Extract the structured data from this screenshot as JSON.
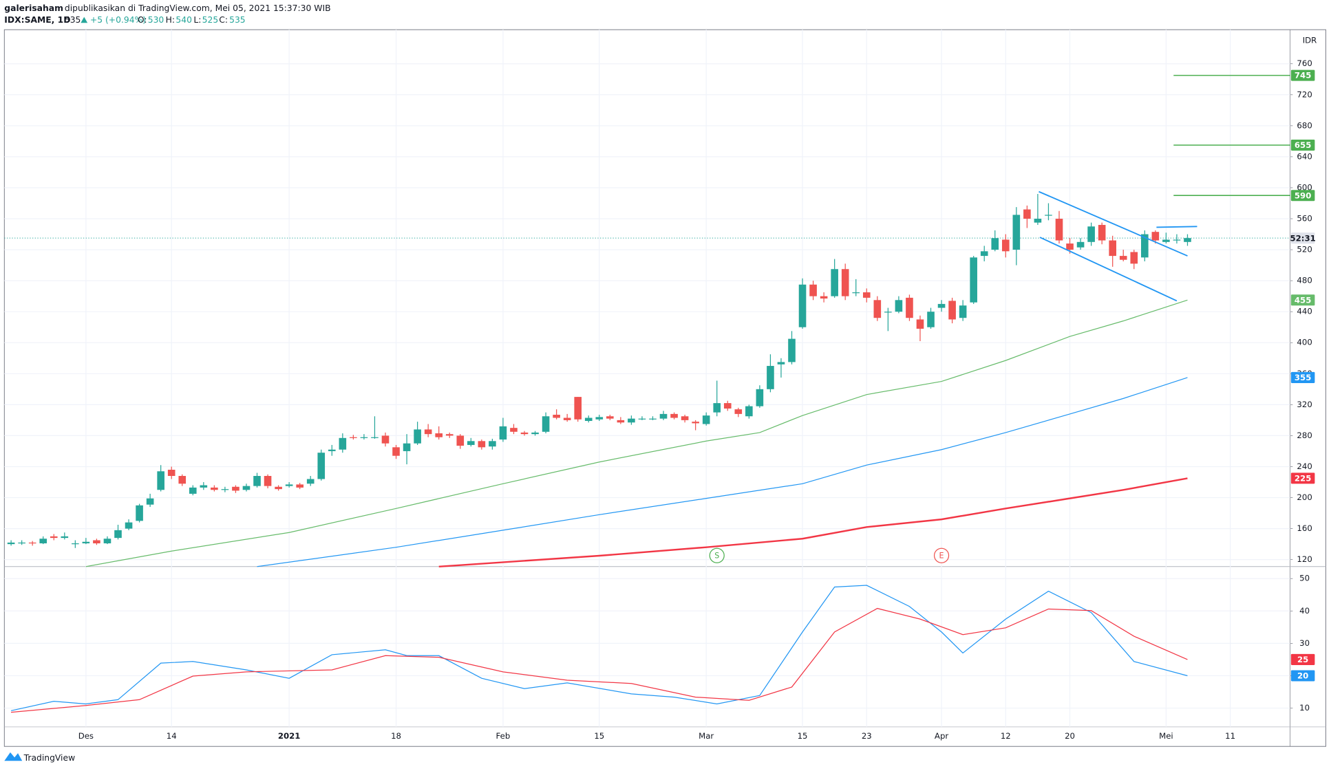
{
  "header": {
    "publisher": "galerisaham",
    "published": "dipublikasikan di TradingView.com, Mei 05, 2021 15:37:30 WIB",
    "symbol": "IDX:SAME, 1D",
    "change": "+5 (+0.94%)",
    "ohlc_labels": [
      "O:",
      "H:",
      "L:",
      "C:"
    ],
    "currency": "IDR"
  },
  "footer": {
    "brand": "TradingView"
  },
  "chart_data": [
    {
      "type": "candlestick",
      "up_color": "#26a69a",
      "down_color": "#ef5350",
      "xlim": [
        -0.63,
        119.6
      ],
      "ylim": [
        111,
        804
      ],
      "yticks": [
        120,
        160,
        200,
        240,
        280,
        320,
        360,
        400,
        440,
        480,
        520,
        560,
        600,
        640,
        680,
        720,
        760
      ],
      "xticks": [
        {
          "value": 7,
          "label": "Des"
        },
        {
          "value": 15,
          "label": "14"
        },
        {
          "value": 26,
          "label": "2021"
        },
        {
          "value": 36,
          "label": "18"
        },
        {
          "value": 46,
          "label": "Feb"
        },
        {
          "value": 55,
          "label": "15"
        },
        {
          "value": 65,
          "label": "Mar"
        },
        {
          "value": 74,
          "label": "15"
        },
        {
          "value": 80,
          "label": "23"
        },
        {
          "value": 87,
          "label": "Apr"
        },
        {
          "value": 93,
          "label": "12"
        },
        {
          "value": 99,
          "label": "20"
        },
        {
          "value": 108,
          "label": "Mei"
        },
        {
          "value": 114,
          "label": "11"
        }
      ],
      "grid": true,
      "open": [
        140,
        141,
        142,
        141,
        150,
        148,
        141,
        141,
        145,
        141,
        148,
        160,
        170,
        191,
        210,
        236,
        228,
        205,
        213,
        213,
        210,
        214,
        210,
        215,
        228,
        214,
        215,
        217,
        218,
        224,
        260,
        262,
        278,
        277,
        278,
        280,
        265,
        260,
        270,
        288,
        283,
        282,
        280,
        268,
        273,
        266,
        275,
        290,
        284,
        282,
        285,
        307,
        303,
        330,
        299,
        301,
        305,
        300,
        297,
        302,
        302,
        302,
        308,
        305,
        298,
        295,
        310,
        322,
        314,
        305,
        318,
        340,
        372,
        375,
        420,
        475,
        460,
        460,
        495,
        464,
        465,
        455,
        440,
        440,
        458,
        430,
        420,
        445,
        454,
        432,
        452,
        512,
        520,
        533,
        520,
        572,
        555,
        565,
        560,
        528,
        523,
        530,
        552,
        532,
        512,
        517,
        510,
        543,
        530,
        533,
        530
      ],
      "high": [
        145,
        145,
        144,
        150,
        153,
        155,
        145,
        148,
        147,
        150,
        165,
        172,
        192,
        205,
        242,
        240,
        230,
        216,
        220,
        216,
        214,
        216,
        218,
        232,
        230,
        216,
        220,
        219,
        228,
        262,
        268,
        283,
        281,
        282,
        305,
        284,
        268,
        282,
        298,
        295,
        292,
        284,
        282,
        277,
        275,
        276,
        303,
        295,
        286,
        286,
        310,
        314,
        308,
        330,
        306,
        307,
        307,
        304,
        306,
        305,
        305,
        312,
        310,
        307,
        300,
        310,
        351,
        325,
        316,
        320,
        345,
        385,
        380,
        415,
        483,
        480,
        465,
        508,
        502,
        482,
        470,
        460,
        445,
        460,
        462,
        435,
        445,
        455,
        458,
        455,
        512,
        525,
        545,
        540,
        575,
        577,
        592,
        580,
        570,
        535,
        535,
        555,
        555,
        538,
        520,
        520,
        545,
        545,
        542,
        540,
        540
      ],
      "low": [
        138,
        139,
        138,
        140,
        145,
        146,
        135,
        140,
        139,
        140,
        146,
        158,
        168,
        188,
        208,
        224,
        215,
        203,
        210,
        208,
        207,
        206,
        208,
        213,
        212,
        209,
        213,
        211,
        215,
        222,
        254,
        258,
        275,
        275,
        276,
        266,
        250,
        243,
        268,
        278,
        275,
        277,
        263,
        266,
        262,
        262,
        272,
        282,
        280,
        280,
        283,
        301,
        298,
        298,
        297,
        299,
        300,
        295,
        294,
        300,
        300,
        300,
        301,
        297,
        287,
        293,
        305,
        312,
        304,
        302,
        316,
        336,
        355,
        372,
        418,
        455,
        452,
        458,
        455,
        460,
        452,
        428,
        415,
        438,
        428,
        402,
        418,
        440,
        425,
        428,
        450,
        505,
        518,
        510,
        500,
        548,
        552,
        558,
        528,
        515,
        520,
        525,
        527,
        498,
        505,
        495,
        505,
        528,
        528,
        528,
        525
      ],
      "close": [
        142,
        142,
        141,
        147,
        148,
        150,
        141,
        143,
        141,
        147,
        158,
        168,
        190,
        199,
        234,
        228,
        218,
        213,
        216,
        210,
        211,
        209,
        215,
        228,
        215,
        211,
        217,
        213,
        224,
        258,
        262,
        277,
        277,
        278,
        278,
        270,
        254,
        270,
        288,
        282,
        278,
        280,
        267,
        273,
        265,
        273,
        292,
        285,
        282,
        284,
        305,
        303,
        300,
        301,
        303,
        304,
        302,
        297,
        302,
        302,
        302,
        308,
        303,
        300,
        296,
        306,
        322,
        315,
        308,
        318,
        340,
        370,
        375,
        405,
        475,
        460,
        457,
        495,
        460,
        465,
        458,
        432,
        440,
        455,
        432,
        418,
        440,
        450,
        430,
        448,
        510,
        518,
        535,
        518,
        565,
        560,
        560,
        565,
        532,
        520,
        530,
        550,
        532,
        512,
        507,
        502,
        540,
        532,
        533,
        533,
        535
      ],
      "moving_averages": [
        {
          "color": "#66bb6a",
          "width": 1,
          "x": [
            7,
            15,
            26,
            36,
            46,
            55,
            65,
            70,
            74,
            80,
            87,
            93,
            99,
            104,
            110
          ],
          "values": [
            111,
            131,
            155,
            186,
            218,
            246,
            273,
            284,
            306,
            333,
            350,
            377,
            408,
            428,
            455
          ]
        },
        {
          "color": "#2196f3",
          "width": 1,
          "x": [
            23,
            36,
            46,
            55,
            65,
            74,
            80,
            87,
            93,
            99,
            104,
            110
          ],
          "values": [
            111,
            136,
            158,
            178,
            199,
            218,
            242,
            262,
            284,
            308,
            328,
            355
          ]
        },
        {
          "color": "#f23645",
          "width": 2,
          "x": [
            40,
            55,
            65,
            74,
            80,
            87,
            93,
            99,
            104,
            110
          ],
          "values": [
            111,
            125,
            136,
            147,
            162,
            172,
            186,
            199,
            210,
            225
          ]
        }
      ],
      "levels": [
        {
          "value": 745,
          "start": 108.7,
          "color": "#4caf50"
        },
        {
          "value": 655,
          "start": 108.7,
          "color": "#4caf50"
        },
        {
          "value": 590,
          "start": 108.7,
          "color": "#4caf50"
        }
      ],
      "trendlines": [
        {
          "color": "#2196f3",
          "x": [
            96.1,
            110
          ],
          "values": [
            595,
            512
          ]
        },
        {
          "color": "#2196f3",
          "x": [
            96.2,
            109
          ],
          "values": [
            536,
            454
          ]
        },
        {
          "color": "#2196f3",
          "x": [
            107.1,
            110.9
          ],
          "values": [
            549,
            550
          ]
        }
      ],
      "events": [
        {
          "label": "S",
          "x": 66,
          "color": "#4caf50"
        },
        {
          "label": "E",
          "x": 87,
          "color": "#ef5350"
        }
      ],
      "countdown": "52:31"
    },
    {
      "type": "line",
      "xlim": [
        -0.63,
        119.6
      ],
      "ylim": [
        4.2,
        53.7
      ],
      "yticks": [
        10,
        20,
        30,
        40,
        50
      ],
      "series": [
        {
          "color": "#2196f3",
          "x": [
            0,
            4,
            7,
            10,
            14,
            17,
            22,
            26,
            30,
            35,
            37,
            40,
            44,
            48,
            52,
            58,
            62,
            66,
            70,
            74,
            77,
            80,
            84,
            87,
            89,
            93,
            97,
            101,
            105,
            110
          ],
          "values": [
            9.2,
            12.1,
            11.3,
            12.6,
            23.9,
            24.4,
            21.8,
            19.2,
            26.5,
            28,
            26.2,
            26.2,
            19.2,
            16,
            17.8,
            14.4,
            13.4,
            11.3,
            13.9,
            33.5,
            47.4,
            47.9,
            41.4,
            33.5,
            27,
            37.5,
            46.1,
            39.5,
            24.4,
            20
          ]
        },
        {
          "color": "#f23645",
          "x": [
            0,
            7,
            12,
            17,
            22,
            30,
            35,
            40,
            46,
            52,
            58,
            64,
            69,
            73,
            77,
            81,
            85,
            89,
            93,
            97,
            101,
            105,
            110
          ],
          "values": [
            8.7,
            10.8,
            12.6,
            19.9,
            21.2,
            21.8,
            26.2,
            25.7,
            21.2,
            18.6,
            17.6,
            13.4,
            12.4,
            16.5,
            33.5,
            40.8,
            37.5,
            32.7,
            34.8,
            40.6,
            40.1,
            32.2,
            25
          ]
        }
      ]
    }
  ]
}
